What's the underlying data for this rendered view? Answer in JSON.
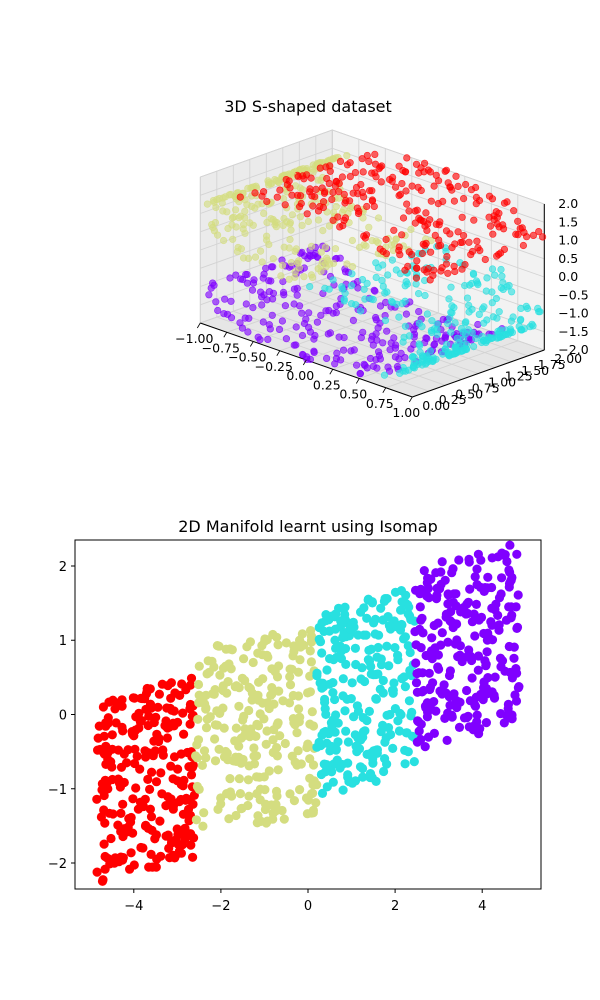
{
  "chart_data": [
    {
      "type": "scatter",
      "subtype": "3d",
      "title": "3D S-shaped dataset",
      "x_ticks": [
        "−1.00",
        "−0.75",
        "−0.50",
        "−0.25",
        "0.00",
        "0.25",
        "0.50",
        "0.75",
        "1.00"
      ],
      "y_ticks": [
        "0.00",
        "0.25",
        "0.50",
        "0.75",
        "1.00",
        "1.25",
        "1.50",
        "1.75",
        "2.00"
      ],
      "z_ticks": [
        "−2.0",
        "−1.5",
        "−1.0",
        "−0.5",
        "0.0",
        "0.5",
        "1.0",
        "1.5",
        "2.0"
      ],
      "xlim": [
        -1,
        1
      ],
      "ylim": [
        0,
        2
      ],
      "zlim": [
        -2,
        2
      ],
      "n_points_per_group": 250,
      "colormap": "rainbow",
      "series": [
        {
          "t_range": [
            -4.71,
            -2.36
          ],
          "color": "#ff0000"
        },
        {
          "t_range": [
            -2.36,
            0.0
          ],
          "color": "#d4dd80"
        },
        {
          "t_range": [
            0.0,
            2.36
          ],
          "color": "#28e0e0"
        },
        {
          "t_range": [
            2.36,
            4.71
          ],
          "color": "#8000ff"
        }
      ]
    },
    {
      "type": "scatter",
      "title": "2D Manifold learnt using Isomap",
      "x_ticks": [
        "−4",
        "−2",
        "0",
        "2",
        "4"
      ],
      "y_ticks": [
        "−2",
        "−1",
        "0",
        "1",
        "2"
      ],
      "xlim": [
        -5.35,
        5.35
      ],
      "ylim": [
        -2.35,
        2.35
      ],
      "n_points_per_group": 250,
      "series": [
        {
          "color": "#ff0000",
          "x_range": [
            -4.85,
            -2.6
          ],
          "y_range": [
            -2.1,
            0.35
          ]
        },
        {
          "color": "#d4dd80",
          "x_range": [
            -2.6,
            0.2
          ],
          "y_range": [
            -1.5,
            1.05
          ]
        },
        {
          "color": "#28e0e0",
          "x_range": [
            0.2,
            2.45
          ],
          "y_range": [
            -0.95,
            1.55
          ]
        },
        {
          "color": "#8000ff",
          "x_range": [
            2.45,
            4.85
          ],
          "y_range": [
            -0.3,
            2.15
          ]
        }
      ]
    }
  ]
}
